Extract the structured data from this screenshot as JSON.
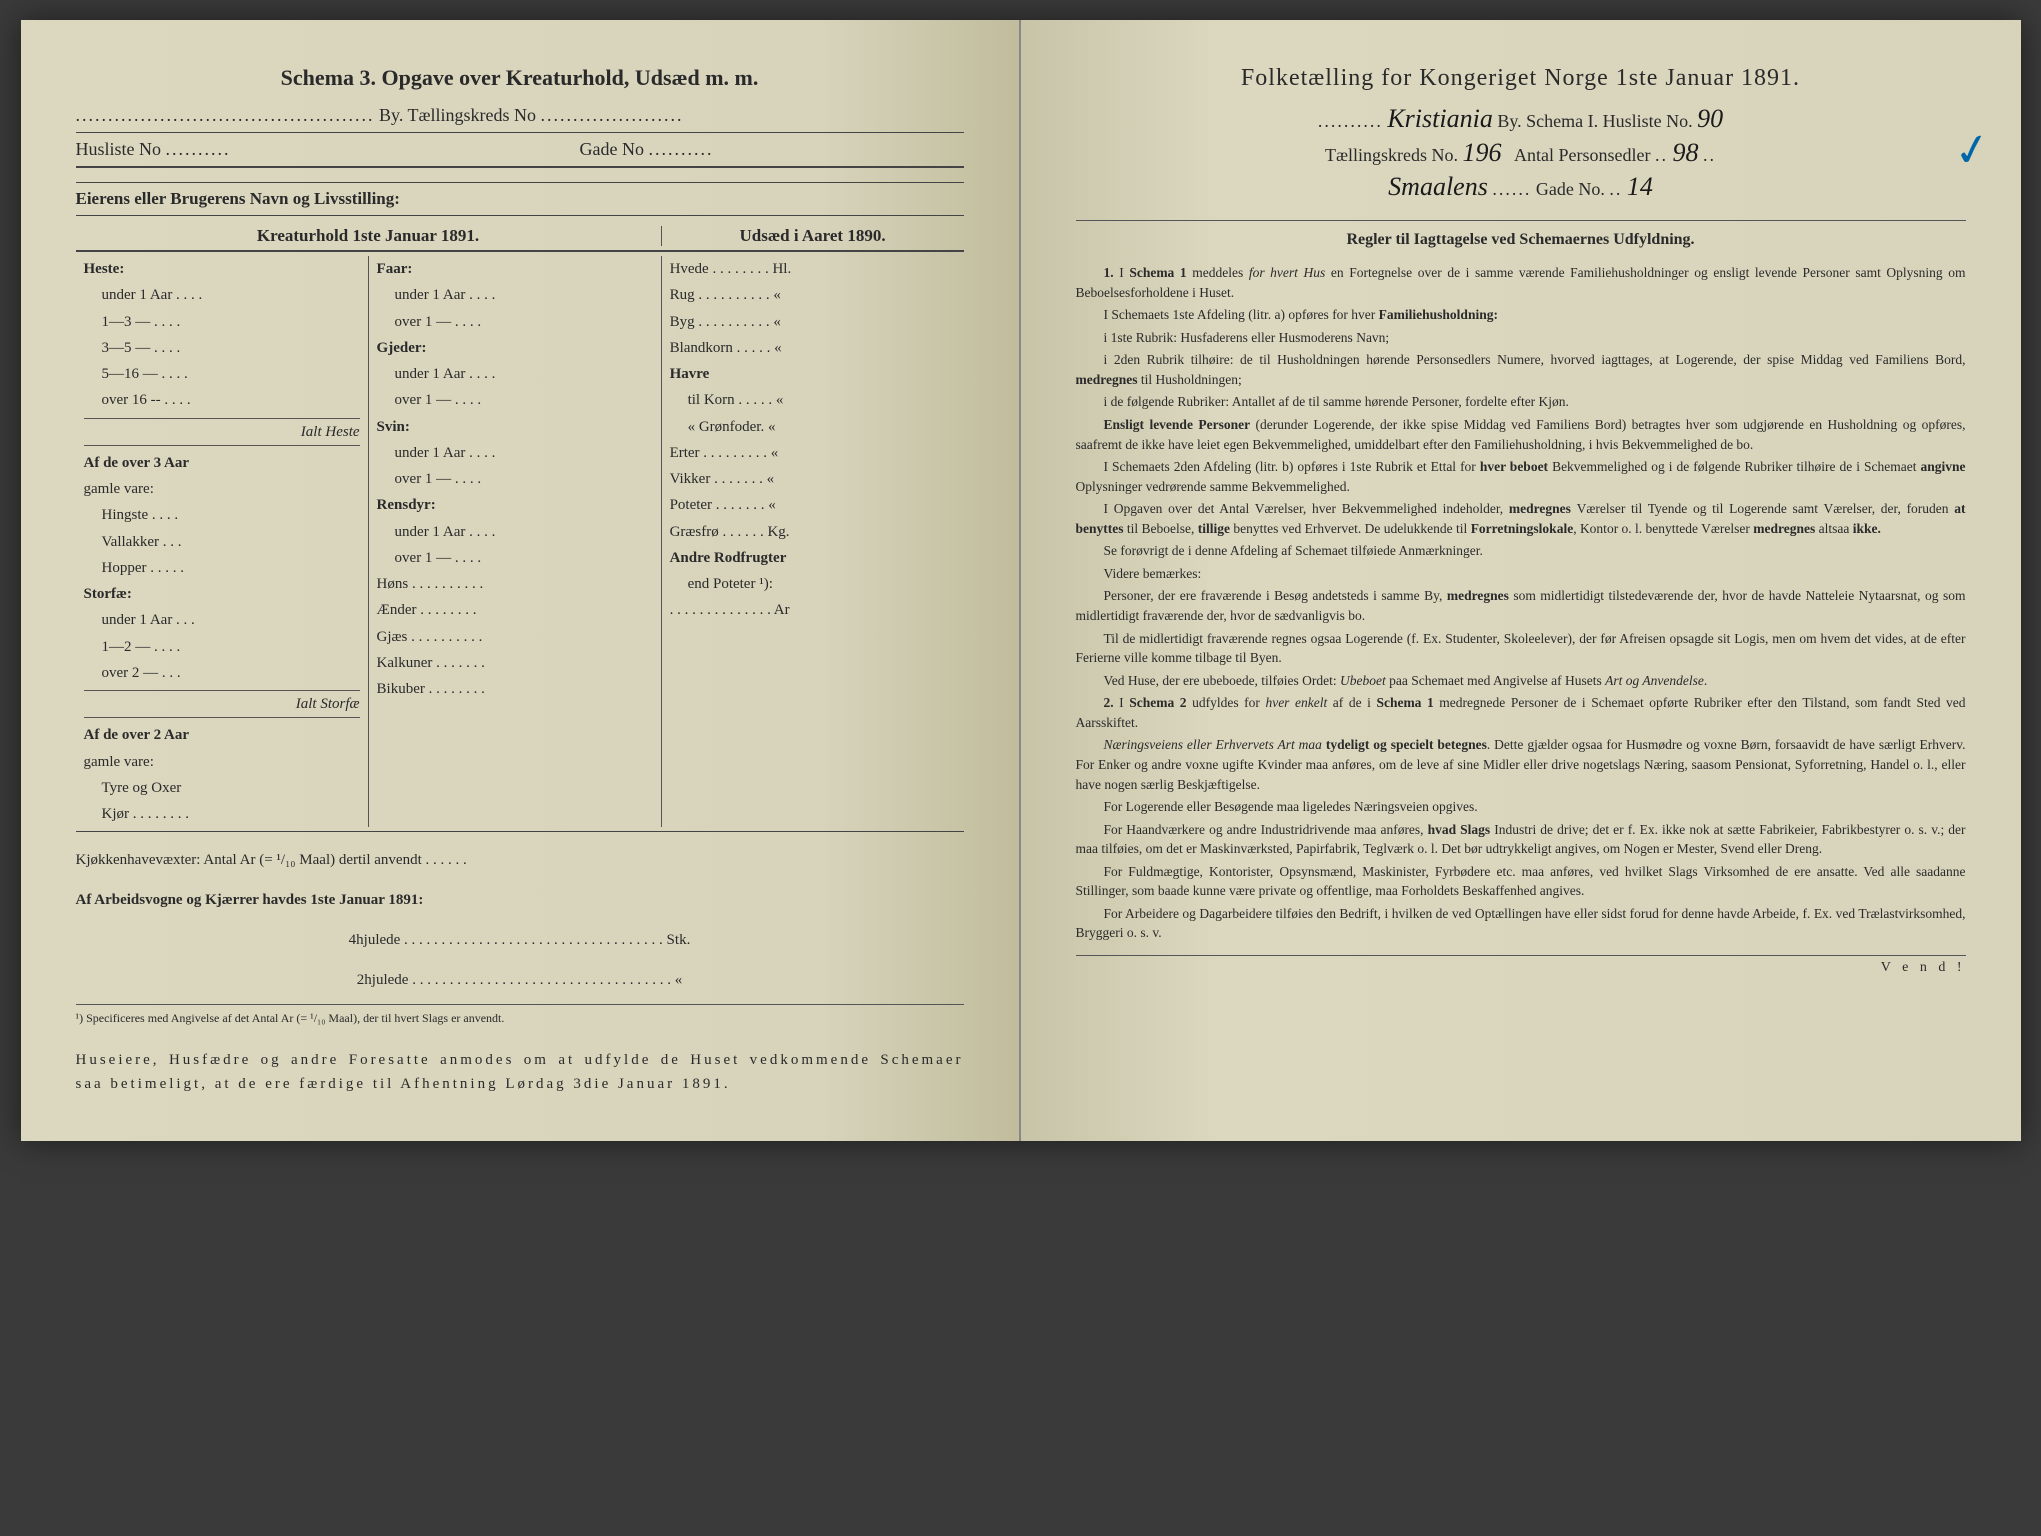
{
  "left": {
    "title": "Schema 3.  Opgave over Kreaturhold, Udsæd m. m.",
    "line1_suffix": "By.  Tællingskreds No",
    "line2_prefix": "Husliste No",
    "line2_suffix": "Gade No",
    "owner_label": "Eierens eller Brugerens Navn og Livsstilling:",
    "col_a": "Kreaturhold 1ste Januar 1891.",
    "col_b": "Udsæd i Aaret 1890.",
    "c1_items": [
      "Heste:",
      "  under 1 Aar . . . .",
      "  1—3  —  . . . .",
      "  3—5  —  . . . .",
      "  5—16 —  . . . .",
      "  over 16 --  . . . .",
      "Ialt Heste",
      "Af de over 3 Aar",
      "gamle vare:",
      "  Hingste . . . .",
      "  Vallakker . . .",
      "  Hopper . . . . .",
      "Storfæ:",
      "  under 1 Aar . . .",
      "  1—2  —  . . . .",
      "  over 2  —  . . .",
      "Ialt Storfæ",
      "Af de over 2 Aar",
      "gamle vare:",
      "  Tyre og Oxer",
      "  Kjør . . . . . . . ."
    ],
    "c2_items": [
      "Faar:",
      "  under 1 Aar . . . .",
      "  over 1  —  . . . .",
      "Gjeder:",
      "  under 1 Aar . . . .",
      "  over 1  —  . . . .",
      "Svin:",
      "  under 1 Aar . . . .",
      "  over 1  —  . . . .",
      "Rensdyr:",
      "  under 1 Aar . . . .",
      "  over 1  —  . . . .",
      "Høns . . . . . . . . . .",
      "Ænder . . . . . . . .",
      "Gjæs . . . . . . . . . .",
      "Kalkuner . . . . . . .",
      "Bikuber . . . . . . . ."
    ],
    "c3_items": [
      "Hvede . . . . . . . . Hl.",
      "Rug . . . . . . . . . .  «",
      "Byg . . . . . . . . . .  «",
      "Blandkorn . . . . .  «",
      "Havre",
      "  til Korn . . . . .  «",
      "  «  Grønfoder.  «",
      "Erter . . . . . . . . .  «",
      "Vikker  . . . . . . .  «",
      "Poteter . . . . . . .  «",
      "Græsfrø . . . . . . Kg.",
      "Andre Rodfrugter",
      "  end Poteter ¹):",
      ". . . . . . . . . . . . . . Ar"
    ],
    "kjokken": "Kjøkkenhavevæxter:  Antal Ar (= ¹/₁₀ Maal) dertil anvendt . . . . . .",
    "arbeids": "Af Arbeidsvogne og Kjærrer havdes 1ste Januar 1891:",
    "hjul4": "4hjulede . . . . . . . . . . . . . . . . . . . . . . . . . . . . . . . . . . . Stk.",
    "hjul2": "2hjulede . . . . . . . . . . . . . . . . . . . . . . . . . . . . . . . . . . .  «",
    "footnote": "¹) Specificeres med Angivelse af det Antal Ar (= ¹/₁₀ Maal), der til hvert Slags er anvendt.",
    "closing": "Huseiere, Husfædre og andre Foresatte anmodes om at udfylde de Huset vedkommende Schemaer saa betimeligt, at de ere færdige til Afhentning Lørdag 3die Januar 1891."
  },
  "right": {
    "title": "Folketælling for Kongeriget Norge 1ste Januar 1891.",
    "hand_city": "Kristiania",
    "line1_mid": "By.  Schema I.  Husliste No.",
    "hand_husliste": "90",
    "line2_pre": "Tællingskreds No.",
    "hand_kreds": "196",
    "line2_mid": "Antal Personsedler",
    "hand_personsedler": "98",
    "hand_gade_name": "Smaalens",
    "line3_mid": "Gade No.",
    "hand_gadeno": "14",
    "check": "✓",
    "rules_title": "Regler til Iagttagelse ved Schemaernes Udfyldning.",
    "rules": [
      "1. I Schema 1 meddeles for hvert Hus en Fortegnelse over de i samme værende Familiehusholdninger og ensligt levende Personer samt Oplysning om Beboelsesforholdene i Huset.",
      "I Schemaets 1ste Afdeling (litr. a) opføres for hver Familiehusholdning:",
      "i 1ste Rubrik: Husfaderens eller Husmoderens Navn;",
      "i 2den Rubrik tilhøire: de til Husholdningen hørende Personsedlers Numere, hvorved iagttages, at Logerende, der spise Middag ved Familiens Bord, medregnes til Husholdningen;",
      "i de følgende Rubriker: Antallet af de til samme hørende Personer, fordelte efter Kjøn.",
      "Ensligt levende Personer (derunder Logerende, der ikke spise Middag ved Familiens Bord) betragtes hver som udgjørende en Husholdning og opføres, saafremt de ikke have leiet egen Bekvemmelighed, umiddelbart efter den Familiehusholdning, i hvis Bekvemmelighed de bo.",
      "I Schemaets 2den Afdeling (litr. b) opføres i 1ste Rubrik et Ettal for hver beboet Bekvemmelighed og i de følgende Rubriker tilhøire de i Schemaet angivne Oplysninger vedrørende samme Bekvemmelighed.",
      "I Opgaven over det Antal Værelser, hver Bekvemmelighed indeholder, medregnes Værelser til Tyende og til Logerende samt Værelser, der, foruden at benyttes til Beboelse, tillige benyttes ved Erhvervet. De udelukkende til Forretningslokale, Kontor o. l. benyttede Værelser medregnes altsaa ikke.",
      "Se forøvrigt de i denne Afdeling af Schemaet tilføiede Anmærkninger.",
      "Videre bemærkes:",
      "Personer, der ere fraværende i Besøg andetsteds i samme By, medregnes som midlertidigt tilstedeværende der, hvor de havde Natteleie Nytaarsnat, og som midlertidigt fraværende der, hvor de sædvanligvis bo.",
      "Til de midlertidigt fraværende regnes ogsaa Logerende (f. Ex. Studenter, Skoleelever), der før Afreisen opsagde sit Logis, men om hvem det vides, at de efter Ferierne ville komme tilbage til Byen.",
      "Ved Huse, der ere ubeboede, tilføies Ordet: Ubeboet paa Schemaet med Angivelse af Husets Art og Anvendelse.",
      "2. I Schema 2 udfyldes for hver enkelt af de i Schema 1 medregnede Personer de i Schemaet opførte Rubriker efter den Tilstand, som fandt Sted ved Aarsskiftet.",
      "Næringsveiens eller Erhvervets Art maa tydeligt og specielt betegnes. Dette gjælder ogsaa for Husmødre og voxne Børn, forsaavidt de have særligt Erhverv. For Enker og andre voxne ugifte Kvinder maa anføres, om de leve af sine Midler eller drive nogetslags Næring, saasom Pensionat, Syforretning, Handel o. l., eller have nogen særlig Beskjæftigelse.",
      "For Logerende eller Besøgende maa ligeledes Næringsveien opgives.",
      "For Haandværkere og andre Industridrivende maa anføres, hvad Slags Industri de drive; det er f. Ex. ikke nok at sætte Fabrikeier, Fabrikbestyrer o. s. v.; der maa tilføies, om det er Maskinværksted, Papirfabrik, Teglværk o. l. Det bør udtrykkeligt angives, om Nogen er Mester, Svend eller Dreng.",
      "For Fuldmægtige, Kontorister, Opsynsmænd, Maskinister, Fyrbødere etc. maa anføres, ved hvilket Slags Virksomhed de ere ansatte. Ved alle saadanne Stillinger, som baade kunne være private og offentlige, maa Forholdets Beskaffenhed angives.",
      "For Arbeidere og Dagarbeidere tilføies den Bedrift, i hvilken de ved Optællingen have eller sidst forud for denne havde Arbeide, f. Ex. ved Trælastvirksomhed, Bryggeri o. s. v."
    ],
    "vend": "V e n d !"
  }
}
